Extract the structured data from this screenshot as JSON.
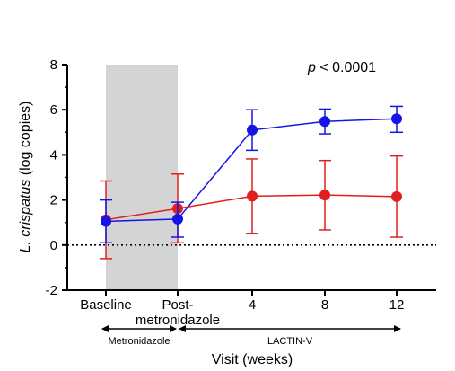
{
  "chart_data": {
    "type": "line",
    "categories": [
      "Baseline",
      "Post-\nmetronidazole",
      "4",
      "8",
      "12"
    ],
    "xlabel": "Visit (weeks)",
    "ylabel_prefix": "L. crispatus",
    "ylabel_suffix": " (log copies)",
    "ylim": [
      -2,
      8
    ],
    "yticks": [
      -2,
      0,
      2,
      4,
      6,
      8
    ],
    "reference_line": 0,
    "annotation": {
      "p_italic": "p",
      "rest": " < 0.0001"
    },
    "shaded_region": {
      "from_category": 0,
      "to_category": 1,
      "color": "#d4d4d4"
    },
    "periods": [
      {
        "label": "Metronidazole",
        "from_category": 0,
        "to_category": 1
      },
      {
        "label": "LACTIN-V",
        "from_category": 1,
        "to_category": 4
      }
    ],
    "series": [
      {
        "color": "#1414e6",
        "values": [
          1.05,
          1.15,
          5.1,
          5.48,
          5.6
        ],
        "err_low": [
          0.95,
          0.8,
          0.9,
          0.55,
          0.6
        ],
        "err_high": [
          0.95,
          0.75,
          0.9,
          0.55,
          0.55
        ]
      },
      {
        "color": "#e02020",
        "values": [
          1.12,
          1.62,
          2.17,
          2.22,
          2.15
        ],
        "err_low": [
          1.72,
          1.52,
          1.65,
          1.55,
          1.8
        ],
        "err_high": [
          1.72,
          1.53,
          1.65,
          1.53,
          1.8
        ]
      }
    ]
  }
}
